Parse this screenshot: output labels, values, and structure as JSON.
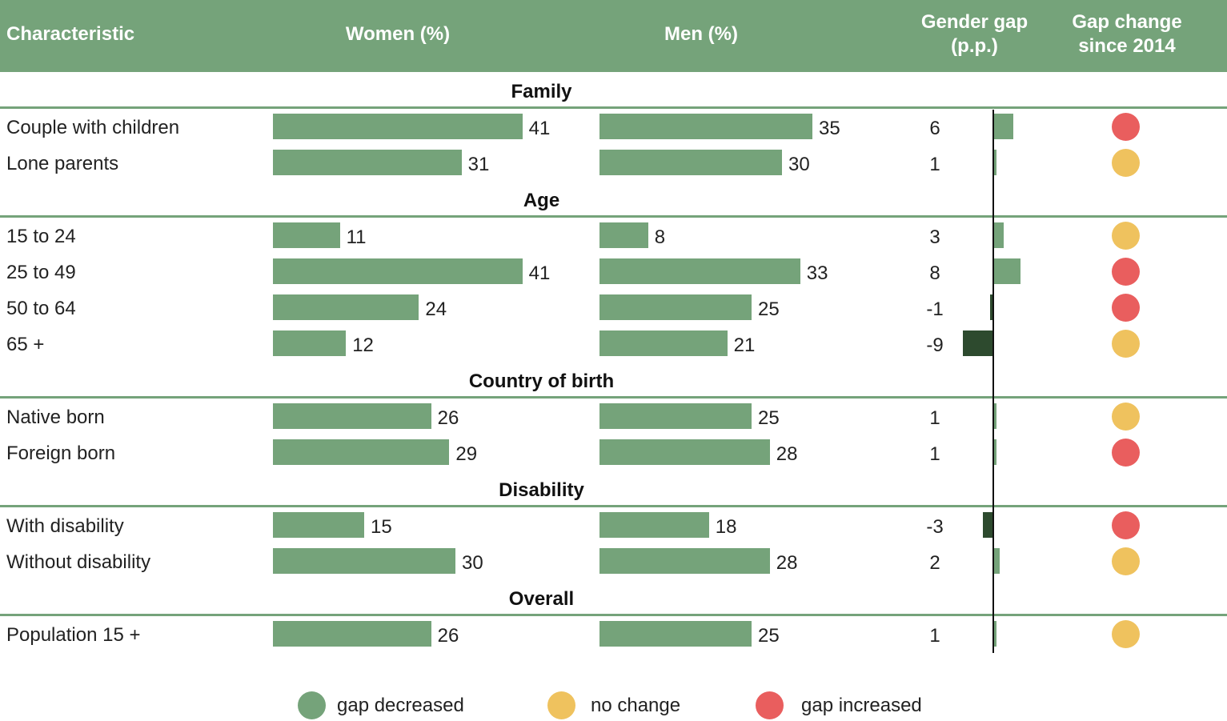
{
  "header": {
    "characteristic": "Characteristic",
    "women": "Women (%)",
    "men": "Men (%)",
    "gap_line1": "Gender gap",
    "gap_line2": "(p.p.)",
    "change_line1": "Gap change",
    "change_line2": "since 2014"
  },
  "colors": {
    "bar": "#75a37a",
    "header_bg": "#75a37a",
    "gap_positive": "#75a37a",
    "gap_negative": "#2d4a2e",
    "decreased": "#75a37a",
    "no_change": "#efc25e",
    "increased": "#e95e5e"
  },
  "legend": [
    {
      "key": "decreased",
      "label": "gap decreased"
    },
    {
      "key": "no_change",
      "label": "no change"
    },
    {
      "key": "increased",
      "label": "gap increased"
    }
  ],
  "chart_data": {
    "type": "bar",
    "sections": [
      {
        "title": "Family",
        "rows": [
          {
            "label": "Couple with children",
            "women": 41,
            "men": 35,
            "gap": 6,
            "change": "increased"
          },
          {
            "label": "Lone parents",
            "women": 31,
            "men": 30,
            "gap": 1,
            "change": "no_change"
          }
        ]
      },
      {
        "title": "Age",
        "rows": [
          {
            "label": "15 to 24",
            "women": 11,
            "men": 8,
            "gap": 3,
            "change": "no_change"
          },
          {
            "label": "25 to 49",
            "women": 41,
            "men": 33,
            "gap": 8,
            "change": "increased"
          },
          {
            "label": "50 to 64",
            "women": 24,
            "men": 25,
            "gap": -1,
            "change": "increased"
          },
          {
            "label": "65 +",
            "women": 12,
            "men": 21,
            "gap": -9,
            "change": "no_change"
          }
        ]
      },
      {
        "title": "Country of birth",
        "rows": [
          {
            "label": "Native born",
            "women": 26,
            "men": 25,
            "gap": 1,
            "change": "no_change"
          },
          {
            "label": "Foreign born",
            "women": 29,
            "men": 28,
            "gap": 1,
            "change": "increased"
          }
        ]
      },
      {
        "title": "Disability",
        "rows": [
          {
            "label": "With disability",
            "women": 15,
            "men": 18,
            "gap": -3,
            "change": "increased"
          },
          {
            "label": "Without disability",
            "women": 30,
            "men": 28,
            "gap": 2,
            "change": "no_change"
          }
        ]
      },
      {
        "title": "Overall",
        "rows": [
          {
            "label": "Population 15 +",
            "women": 26,
            "men": 25,
            "gap": 1,
            "change": "no_change"
          }
        ]
      }
    ]
  }
}
